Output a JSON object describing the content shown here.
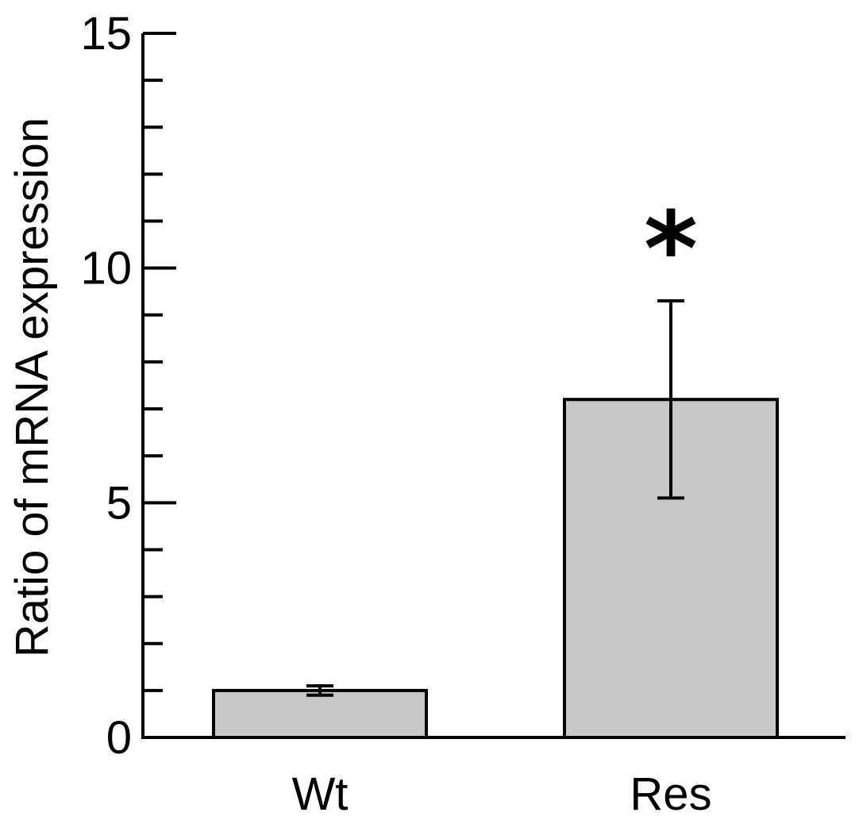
{
  "chart_data": {
    "type": "bar",
    "title": "",
    "xlabel": "",
    "ylabel": "Ratio of mRNA expression",
    "ylim": [
      0,
      15
    ],
    "yticks": [
      0,
      5,
      10,
      15
    ],
    "categories": [
      "Wt",
      "Res"
    ],
    "values": [
      1.0,
      7.2
    ],
    "errors": [
      0.1,
      2.1
    ],
    "annotations": [
      {
        "category": "Res",
        "text": "*"
      }
    ],
    "grid": false,
    "bar_color": "#c8c8c8",
    "edge_color": "#000000"
  }
}
